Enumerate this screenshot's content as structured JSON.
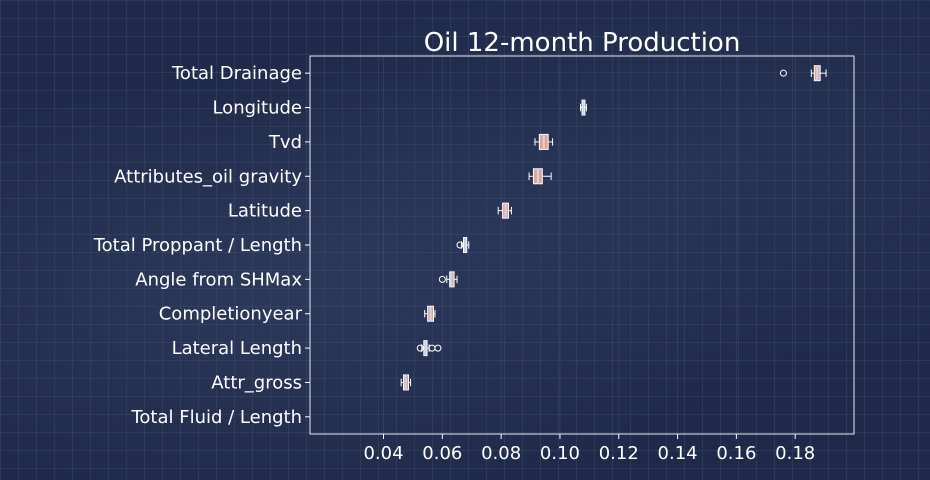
{
  "chart_data": {
    "type": "boxplot-horizontal",
    "title": "Oil 12-month Production",
    "xlabel": "",
    "ylabel": "",
    "xlim": [
      0.015,
      0.2
    ],
    "xticks": [
      0.04,
      0.06,
      0.08,
      0.1,
      0.12,
      0.14,
      0.16,
      0.18
    ],
    "xtick_labels": [
      "0.04",
      "0.06",
      "0.08",
      "0.10",
      "0.12",
      "0.14",
      "0.16",
      "0.18"
    ],
    "grid": true,
    "box_color": "#e8a090",
    "median_color": "#c8d8f0",
    "edge_color": "#ffffff",
    "categories": [
      "Total Drainage",
      "Longitude",
      "Tvd",
      "Attributes_oil gravity",
      "Latitude",
      "Total Proppant / Length",
      "Angle from SHMax",
      "Completionyear",
      "Lateral Length",
      "Attr_gross",
      "Total Fluid / Length"
    ],
    "boxes": [
      {
        "whislo": 0.1855,
        "q1": 0.1865,
        "med": 0.1875,
        "q3": 0.1885,
        "whishi": 0.1905,
        "fliers": [
          0.176
        ]
      },
      {
        "whislo": 0.107,
        "q1": 0.1075,
        "med": 0.108,
        "q3": 0.1085,
        "whishi": 0.109,
        "fliers": []
      },
      {
        "whislo": 0.0915,
        "q1": 0.093,
        "med": 0.0945,
        "q3": 0.096,
        "whishi": 0.0975,
        "fliers": []
      },
      {
        "whislo": 0.0895,
        "q1": 0.091,
        "med": 0.0925,
        "q3": 0.094,
        "whishi": 0.097,
        "fliers": []
      },
      {
        "whislo": 0.079,
        "q1": 0.0805,
        "med": 0.0815,
        "q3": 0.0825,
        "whishi": 0.0835,
        "fliers": []
      },
      {
        "whislo": 0.0665,
        "q1": 0.0672,
        "med": 0.0678,
        "q3": 0.0683,
        "whishi": 0.069,
        "fliers": [
          0.066
        ]
      },
      {
        "whislo": 0.0615,
        "q1": 0.0625,
        "med": 0.063,
        "q3": 0.064,
        "whishi": 0.065,
        "fliers": [
          0.06
        ]
      },
      {
        "whislo": 0.054,
        "q1": 0.055,
        "med": 0.056,
        "q3": 0.057,
        "whishi": 0.0575,
        "fliers": []
      },
      {
        "whislo": 0.053,
        "q1": 0.0537,
        "med": 0.0542,
        "q3": 0.0548,
        "whishi": 0.0555,
        "fliers": [
          0.0525,
          0.0565,
          0.0585
        ]
      },
      {
        "whislo": 0.046,
        "q1": 0.0468,
        "med": 0.0475,
        "q3": 0.0485,
        "whishi": 0.0492,
        "fliers": []
      },
      null
    ]
  }
}
